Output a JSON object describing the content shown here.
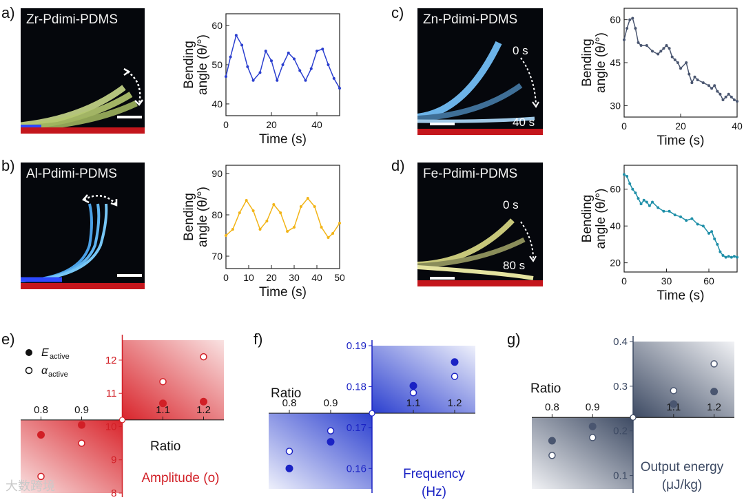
{
  "panels": {
    "a": {
      "label": "a)",
      "photo_title": "Zr-Pdimi-PDMS"
    },
    "b": {
      "label": "b)",
      "photo_title": "Al-Pdimi-PDMS"
    },
    "c": {
      "label": "c)",
      "photo_title": "Zn-Pdimi-PDMS",
      "time_start": "0 s",
      "time_end": "40 s"
    },
    "d": {
      "label": "d)",
      "photo_title": "Fe-Pdimi-PDMS",
      "time_start": "0 s",
      "time_end": "80 s"
    },
    "e": {
      "label": "e)"
    },
    "f": {
      "label": "f)"
    },
    "g": {
      "label": "g)"
    }
  },
  "colors": {
    "zr": "#2b3fcf",
    "al": "#f2b417",
    "zn": "#4a5670",
    "fe": "#1f8fa8",
    "e_axis": "#d11f26",
    "f_axis": "#1a22c4",
    "g_axis": "#3d4a63",
    "photo_bar": "#c4161c"
  },
  "watermark": "大数跨境",
  "chart_data": [
    {
      "id": "a",
      "type": "line",
      "xlabel": "Time (s)",
      "ylabel": "Bending angle (θ/°)",
      "xlim": [
        0,
        50
      ],
      "ylim": [
        37,
        63
      ],
      "xticks": [
        0,
        20,
        40
      ],
      "yticks": [
        40,
        50,
        60
      ],
      "series": [
        {
          "name": "Zr-Pdimi-PDMS",
          "color": "#2b3fcf",
          "x": [
            0,
            2,
            4.5,
            7,
            9.5,
            12,
            15,
            17.5,
            20,
            22.5,
            25,
            27.5,
            30,
            32.5,
            35,
            37.5,
            40,
            42.5,
            45,
            47.5,
            50
          ],
          "y": [
            47,
            52,
            57.5,
            55,
            49.5,
            46,
            48,
            53.5,
            51,
            46,
            50,
            53,
            51.5,
            48.5,
            46,
            49,
            53.5,
            54,
            50,
            46.5,
            44
          ]
        }
      ]
    },
    {
      "id": "b",
      "type": "line",
      "xlabel": "Time (s)",
      "ylabel": "Bending angle (θ/°)",
      "xlim": [
        0,
        50
      ],
      "ylim": [
        67,
        92
      ],
      "xticks": [
        0,
        10,
        20,
        30,
        40,
        50
      ],
      "yticks": [
        70,
        80,
        90
      ],
      "series": [
        {
          "name": "Al-Pdimi-PDMS",
          "color": "#f2b417",
          "x": [
            0,
            3,
            6,
            9,
            12,
            15,
            18,
            21,
            24,
            27,
            30,
            33,
            36,
            39,
            42,
            45,
            47,
            50
          ],
          "y": [
            75,
            76.5,
            80.5,
            83.5,
            81,
            76.5,
            78.5,
            82.5,
            80.5,
            76,
            77,
            82,
            84,
            82,
            77,
            74.5,
            75.5,
            78
          ]
        }
      ]
    },
    {
      "id": "c",
      "type": "line",
      "xlabel": "Time (s)",
      "ylabel": "Bending angle (θ/°)",
      "xlim": [
        0,
        40
      ],
      "ylim": [
        26,
        64
      ],
      "xticks": [
        0,
        20,
        40
      ],
      "yticks": [
        30,
        45,
        60
      ],
      "series": [
        {
          "name": "Zn-Pdimi-PDMS",
          "color": "#4a5670",
          "x": [
            0,
            1,
            2,
            3,
            4,
            5,
            6,
            8,
            10,
            12,
            13,
            14,
            15,
            16,
            17,
            18,
            19,
            20,
            22,
            23,
            24,
            25,
            26,
            28,
            30,
            31,
            32,
            33,
            34,
            35,
            36,
            37,
            38,
            39,
            40
          ],
          "y": [
            53,
            57,
            60,
            60.5,
            57,
            52,
            51,
            51,
            49,
            48,
            49,
            50,
            51,
            50,
            47,
            46,
            45,
            43,
            45,
            41,
            38,
            40,
            39,
            38,
            37,
            36,
            37,
            35,
            34,
            32,
            33,
            34,
            33,
            32,
            31.5
          ]
        }
      ]
    },
    {
      "id": "d",
      "type": "line",
      "xlabel": "Time (s)",
      "ylabel": "Bending angle (θ/°)",
      "xlim": [
        0,
        80
      ],
      "ylim": [
        15,
        73
      ],
      "xticks": [
        0,
        30,
        60
      ],
      "yticks": [
        20,
        40,
        60
      ],
      "series": [
        {
          "name": "Fe-Pdimi-PDMS",
          "color": "#1f8fa8",
          "x": [
            0,
            2,
            4,
            6,
            8,
            10,
            12,
            14,
            16,
            18,
            20,
            24,
            28,
            32,
            36,
            40,
            44,
            48,
            52,
            56,
            60,
            62,
            64,
            66,
            68,
            70,
            72,
            74,
            76,
            78,
            80
          ],
          "y": [
            68,
            67,
            63,
            60,
            58,
            55,
            52,
            54,
            53,
            51,
            53,
            50,
            48,
            48,
            46,
            45,
            43,
            44,
            41,
            40,
            36,
            37,
            33,
            30,
            26,
            24,
            23,
            23.5,
            23,
            23.5,
            23
          ]
        }
      ]
    },
    {
      "id": "e",
      "type": "scatter",
      "xlabel": "Ratio",
      "ylabel": "Amplitude (o)",
      "xlim": [
        0.75,
        1.25
      ],
      "ylim": [
        8,
        12.6
      ],
      "x_origin": 1.0,
      "y_origin": 10.2,
      "xticks": [
        0.8,
        0.9,
        1.1,
        1.2
      ],
      "yticks": [
        8,
        9,
        10,
        11,
        12
      ],
      "legend": {
        "filled": "E",
        "filled_sub": "active",
        "open": "α",
        "open_sub": "active"
      },
      "series": [
        {
          "name": "E_active",
          "marker": "filled",
          "x": [
            0.8,
            0.9,
            1.1,
            1.2
          ],
          "y": [
            9.75,
            10.05,
            10.7,
            10.75
          ]
        },
        {
          "name": "α_active",
          "marker": "open",
          "x": [
            0.8,
            0.9,
            1.1,
            1.2
          ],
          "y": [
            8.5,
            9.5,
            11.35,
            12.1
          ]
        }
      ]
    },
    {
      "id": "f",
      "type": "scatter",
      "xlabel": "Ratio",
      "ylabel": "Frequency (Hz)",
      "xlim": [
        0.75,
        1.25
      ],
      "ylim": [
        0.155,
        0.19
      ],
      "x_origin": 1.0,
      "y_origin": 0.1735,
      "xticks": [
        0.8,
        0.9,
        1.1,
        1.2
      ],
      "yticks": [
        0.16,
        0.17,
        0.18,
        0.19
      ],
      "series": [
        {
          "name": "E_active",
          "marker": "filled",
          "x": [
            0.8,
            0.9,
            1.1,
            1.2
          ],
          "y": [
            0.16,
            0.1665,
            0.1802,
            0.186
          ]
        },
        {
          "name": "α_active",
          "marker": "open",
          "x": [
            0.8,
            0.9,
            1.1,
            1.2
          ],
          "y": [
            0.1642,
            0.1692,
            0.1785,
            0.1825
          ]
        }
      ]
    },
    {
      "id": "g",
      "type": "scatter",
      "xlabel": "Ratio",
      "ylabel": "Output energy (μJ/kg)",
      "xlim": [
        0.75,
        1.25
      ],
      "ylim": [
        0.07,
        0.4
      ],
      "x_origin": 1.0,
      "y_origin": 0.23,
      "xticks": [
        0.8,
        0.9,
        1.1,
        1.2
      ],
      "yticks": [
        0.1,
        0.2,
        0.3,
        0.4
      ],
      "series": [
        {
          "name": "E_active",
          "marker": "filled",
          "x": [
            0.8,
            0.9,
            1.1,
            1.2
          ],
          "y": [
            0.178,
            0.21,
            0.26,
            0.288
          ]
        },
        {
          "name": "α_active",
          "marker": "open",
          "x": [
            0.8,
            0.9,
            1.1,
            1.2
          ],
          "y": [
            0.145,
            0.185,
            0.29,
            0.35
          ]
        }
      ]
    }
  ]
}
